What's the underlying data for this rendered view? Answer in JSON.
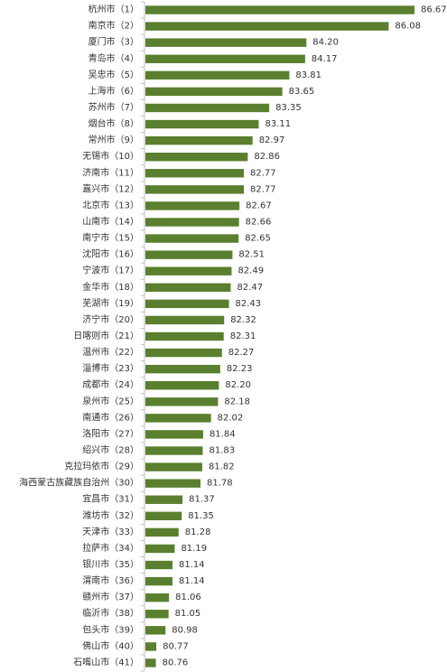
{
  "chart_data": {
    "type": "bar",
    "orientation": "horizontal",
    "title": "",
    "xlabel": "",
    "ylabel": "",
    "grid": false,
    "legend": "none",
    "bar_color": "#5a7f2e",
    "xlim": [
      80.5,
      87.0
    ],
    "categories": [
      "杭州市（1）",
      "南京市（2）",
      "厦门市（3）",
      "青岛市（4）",
      "吴忠市（5）",
      "上海市（6）",
      "苏州市（7）",
      "烟台市（8）",
      "常州市（9）",
      "无锡市（10）",
      "济南市（11）",
      "嘉兴市（12）",
      "北京市（13）",
      "山南市（14）",
      "南宁市（15）",
      "沈阳市（16）",
      "宁波市（17）",
      "金华市（18）",
      "芜湖市（19）",
      "济宁市（20）",
      "日喀则市（21）",
      "温州市（22）",
      "淄博市（23）",
      "成都市（24）",
      "泉州市（25）",
      "南通市（26）",
      "洛阳市（27）",
      "绍兴市（28）",
      "克拉玛依市（29）",
      "海西蒙古族藏族自治州（30）",
      "宜昌市（31）",
      "潍坊市（32）",
      "天津市（33）",
      "拉萨市（34）",
      "银川市（35）",
      "渭南市（36）",
      "赣州市（37）",
      "临沂市（38）",
      "包头市（39）",
      "佛山市（40）",
      "石嘴山市（41）"
    ],
    "values": [
      86.67,
      86.08,
      84.2,
      84.17,
      83.81,
      83.65,
      83.35,
      83.11,
      82.97,
      82.86,
      82.77,
      82.77,
      82.67,
      82.66,
      82.65,
      82.51,
      82.49,
      82.47,
      82.43,
      82.32,
      82.31,
      82.27,
      82.23,
      82.2,
      82.18,
      82.02,
      81.84,
      81.83,
      81.82,
      81.78,
      81.37,
      81.35,
      81.28,
      81.19,
      81.14,
      81.14,
      81.06,
      81.05,
      80.98,
      80.77,
      80.76
    ]
  }
}
